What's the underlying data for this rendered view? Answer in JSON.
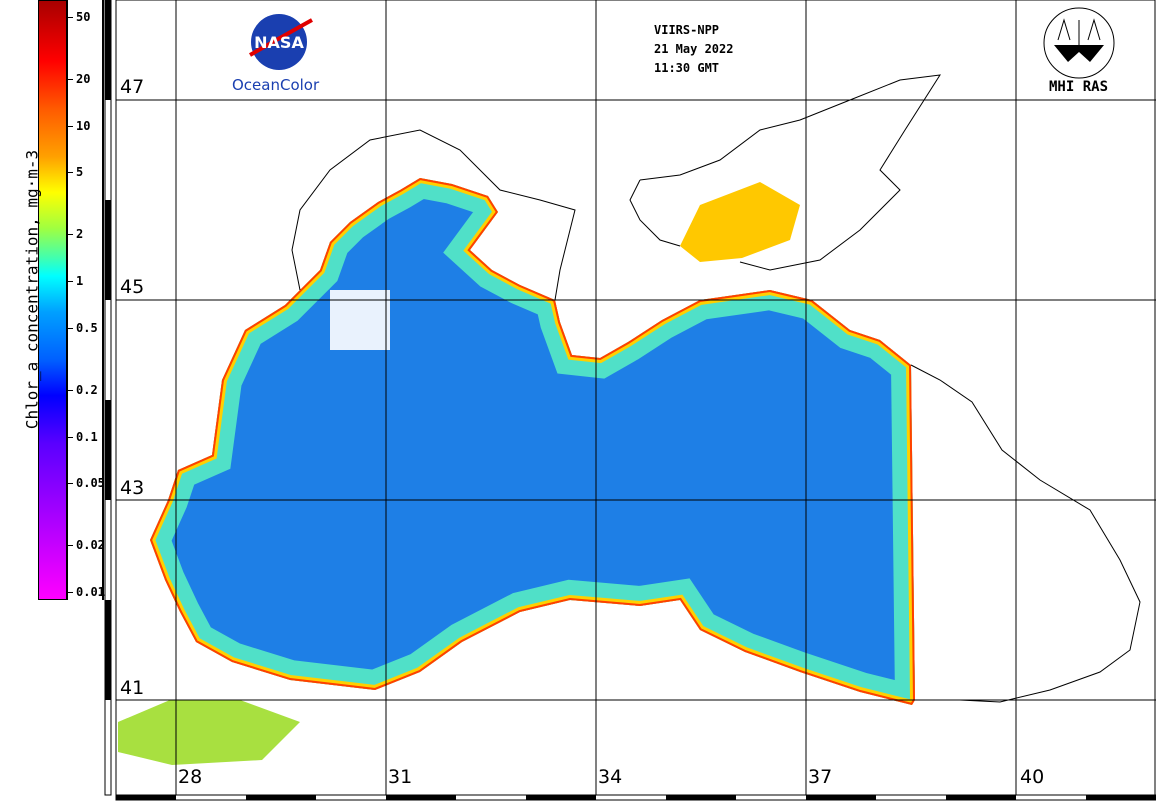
{
  "colorbar": {
    "label": "Chlor_a concentration, mg·m-3",
    "ticks": [
      "50",
      "20",
      "10",
      "5",
      "2",
      "1",
      "0.5",
      "0.2",
      "0.1",
      "0.05",
      "0.02",
      "0.01"
    ],
    "tick_values": [
      50,
      20,
      10,
      5,
      2,
      1,
      0.5,
      0.2,
      0.1,
      0.05,
      0.02,
      0.01
    ],
    "range": [
      0.01,
      60
    ]
  },
  "header": {
    "sensor": "VIIRS-NPP",
    "date": "21 May 2022",
    "time": "11:30 GMT"
  },
  "logos": {
    "nasa_text": "NASA",
    "nasa_caption": "OceanColor",
    "mhi_caption": "MHI RAS"
  },
  "latitudes": [
    "47",
    "45",
    "43",
    "41"
  ],
  "longitudes": [
    "28",
    "31",
    "34",
    "37",
    "40"
  ],
  "colors": {
    "ocean_low": "#1e78e6",
    "coast_mid": "#40e0c0",
    "coast_high": "#ff6000",
    "land": "#ffffff"
  }
}
